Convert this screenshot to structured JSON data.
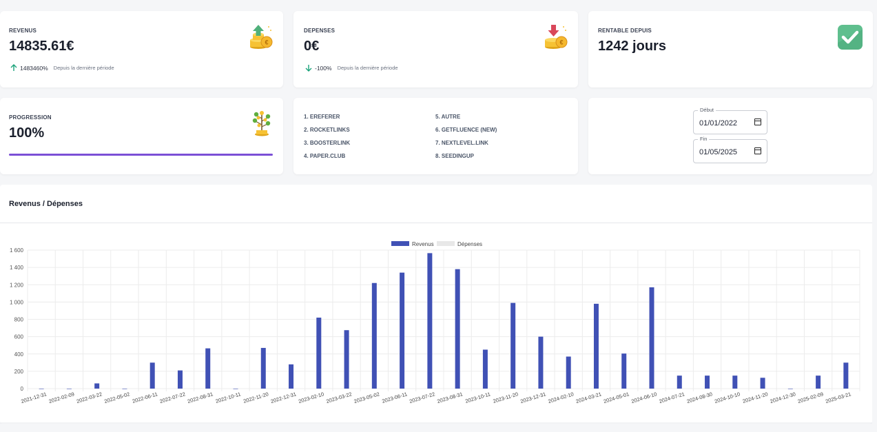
{
  "kpis": {
    "revenus": {
      "label": "REVENUS",
      "value": "14835.61€",
      "change": "1483460%",
      "since": "Depuis la dernière période",
      "icon": "coins-up-icon"
    },
    "depenses": {
      "label": "DEPENSES",
      "value": "0€",
      "change": "-100%",
      "since": "Depuis la dernière période",
      "icon": "coins-down-icon"
    },
    "rentable": {
      "label": "RENTABLE DEPUIS",
      "value": "1242 jours",
      "icon": "check-badge-icon"
    },
    "progression": {
      "label": "PROGRESSION",
      "value": "100%",
      "level": 1.0,
      "icon": "money-plant-icon"
    }
  },
  "sources": {
    "col1": [
      "1. EREFERER",
      "2. ROCKETLINKS",
      "3. BOOSTERLINK",
      "4. PAPER.CLUB"
    ],
    "col2": [
      "5. AUTRE",
      "6. GETFLUENCE (NEW)",
      "7. NEXTLEVEL.LINK",
      "8. SEEDINGUP"
    ]
  },
  "dates": {
    "start": {
      "label": "Début",
      "value": "01/01/2022"
    },
    "end": {
      "label": "Fin",
      "value": "01/05/2025"
    }
  },
  "colors": {
    "accent": "#4051b5",
    "progress": "#7b4fd6",
    "depenses": "#e8e8e8",
    "up": "#1aa37a"
  },
  "chart": {
    "title": "Revenus / Dépenses"
  },
  "chart_data": {
    "type": "bar",
    "categories": [
      "2021-12-31",
      "2022-02-09",
      "2022-03-22",
      "2022-05-02",
      "2022-06-11",
      "2022-07-22",
      "2022-08-31",
      "2022-10-11",
      "2022-11-20",
      "2022-12-31",
      "2023-02-10",
      "2023-03-22",
      "2023-05-02",
      "2023-06-11",
      "2023-07-22",
      "2023-08-31",
      "2023-10-11",
      "2023-11-20",
      "2023-12-31",
      "2024-02-10",
      "2024-03-21",
      "2024-05-01",
      "2024-06-10",
      "2024-07-21",
      "2024-08-30",
      "2024-10-10",
      "2024-11-20",
      "2024-12-30",
      "2025-02-09",
      "2025-03-21"
    ],
    "series": [
      {
        "name": "Revenus",
        "values": [
          0,
          0,
          60,
          0,
          300,
          210,
          465,
          0,
          470,
          280,
          820,
          675,
          1220,
          1340,
          1565,
          1380,
          450,
          990,
          600,
          370,
          980,
          405,
          1170,
          150,
          150,
          150,
          125,
          0,
          150,
          300
        ]
      },
      {
        "name": "Dépenses",
        "values": [
          0,
          0,
          0,
          0,
          0,
          0,
          0,
          0,
          0,
          0,
          0,
          0,
          0,
          0,
          0,
          0,
          0,
          0,
          0,
          0,
          0,
          0,
          0,
          0,
          0,
          0,
          0,
          0,
          0,
          0
        ]
      }
    ],
    "ylim": [
      0,
      1600
    ],
    "yticks": [
      "0",
      "200",
      "400",
      "600",
      "800",
      "1 000",
      "1 200",
      "1 400",
      "1 600"
    ],
    "grid": true,
    "legend": "top"
  }
}
